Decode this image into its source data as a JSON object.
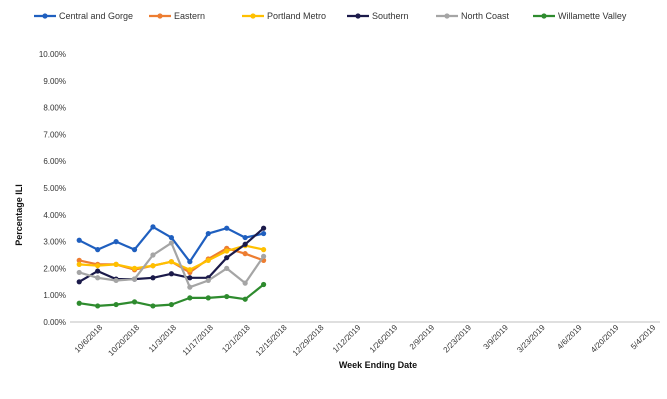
{
  "chart_data": {
    "type": "line",
    "title": "",
    "xlabel": "Week Ending Date",
    "ylabel": "Percentage ILI",
    "ylim": [
      0,
      0.1
    ],
    "yticks": [
      "0.00%",
      "1.00%",
      "2.00%",
      "3.00%",
      "4.00%",
      "5.00%",
      "6.00%",
      "7.00%",
      "8.00%",
      "9.00%",
      "10.00%"
    ],
    "xtick_labels": [
      "10/6/2018",
      "10/20/2018",
      "11/3/2018",
      "11/17/2018",
      "12/1/2018",
      "12/15/2018",
      "12/29/2018",
      "1/12/2019",
      "1/26/2019",
      "2/9/2019",
      "2/23/2019",
      "3/9/2019",
      "3/23/2019",
      "4/6/2019",
      "4/20/2019",
      "5/4/2019"
    ],
    "x": [
      "10/6/2018",
      "10/13/2018",
      "10/20/2018",
      "10/27/2018",
      "11/3/2018",
      "11/10/2018",
      "11/17/2018",
      "11/24/2018",
      "12/1/2018",
      "12/8/2018",
      "12/15/2018"
    ],
    "legend_position": "top",
    "grid": false,
    "series": [
      {
        "name": "Central and Gorge",
        "color": "#1f5fbf",
        "values": [
          0.0305,
          0.027,
          0.03,
          0.027,
          0.0355,
          0.0315,
          0.0225,
          0.033,
          0.035,
          0.0315,
          0.033
        ]
      },
      {
        "name": "Eastern",
        "color": "#ed7d31",
        "values": [
          0.023,
          0.0215,
          0.0215,
          0.0195,
          0.021,
          0.0225,
          0.0185,
          0.0235,
          0.0275,
          0.0255,
          0.023
        ]
      },
      {
        "name": "Portland Metro",
        "color": "#ffc000",
        "values": [
          0.0215,
          0.021,
          0.0215,
          0.02,
          0.021,
          0.0225,
          0.0195,
          0.023,
          0.0265,
          0.0285,
          0.027
        ]
      },
      {
        "name": "Southern",
        "color": "#1b1a4a",
        "values": [
          0.015,
          0.019,
          0.016,
          0.016,
          0.0165,
          0.018,
          0.0165,
          0.0165,
          0.024,
          0.029,
          0.035
        ]
      },
      {
        "name": "North Coast",
        "color": "#a5a5a5",
        "values": [
          0.0185,
          0.0165,
          0.0155,
          0.016,
          0.025,
          0.0295,
          0.013,
          0.0155,
          0.02,
          0.0145,
          0.0245
        ]
      },
      {
        "name": "Willamette Valley",
        "color": "#2e8b2e",
        "values": [
          0.007,
          0.006,
          0.0065,
          0.0075,
          0.006,
          0.0065,
          0.009,
          0.009,
          0.0095,
          0.0085,
          0.014
        ]
      }
    ]
  }
}
